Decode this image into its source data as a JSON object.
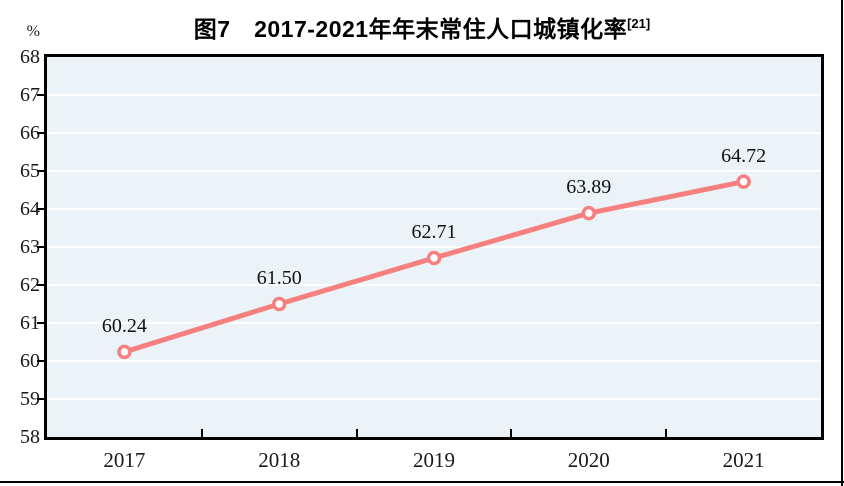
{
  "title": {
    "text": "图7　2017-2021年年末常住人口城镇化率",
    "superscript": "[21]"
  },
  "y_axis": {
    "unit": "%",
    "tick_labels": [
      "68",
      "67",
      "66",
      "65",
      "64",
      "63",
      "62",
      "61",
      "60",
      "59",
      "58"
    ]
  },
  "x_axis": {
    "tick_labels": [
      "2017",
      "2018",
      "2019",
      "2020",
      "2021"
    ]
  },
  "chart_data": {
    "type": "line",
    "title": "图7 2017-2021年年末常住人口城镇化率[21]",
    "categories": [
      "2017",
      "2018",
      "2019",
      "2020",
      "2021"
    ],
    "values": [
      60.24,
      61.5,
      62.71,
      63.89,
      64.72
    ],
    "data_labels": [
      "60.24",
      "61.50",
      "62.71",
      "63.89",
      "64.72"
    ],
    "ylabel": "%",
    "xlabel": "",
    "ylim": [
      58,
      68
    ],
    "ytick_interval": 1,
    "grid": true,
    "legend": false,
    "line_color": "#f68080",
    "marker": "open-circle",
    "marker_fill": "#ffffff",
    "plot_background": "#ebf3f8",
    "grid_color": "#ffffff",
    "axis_color": "#000000"
  }
}
